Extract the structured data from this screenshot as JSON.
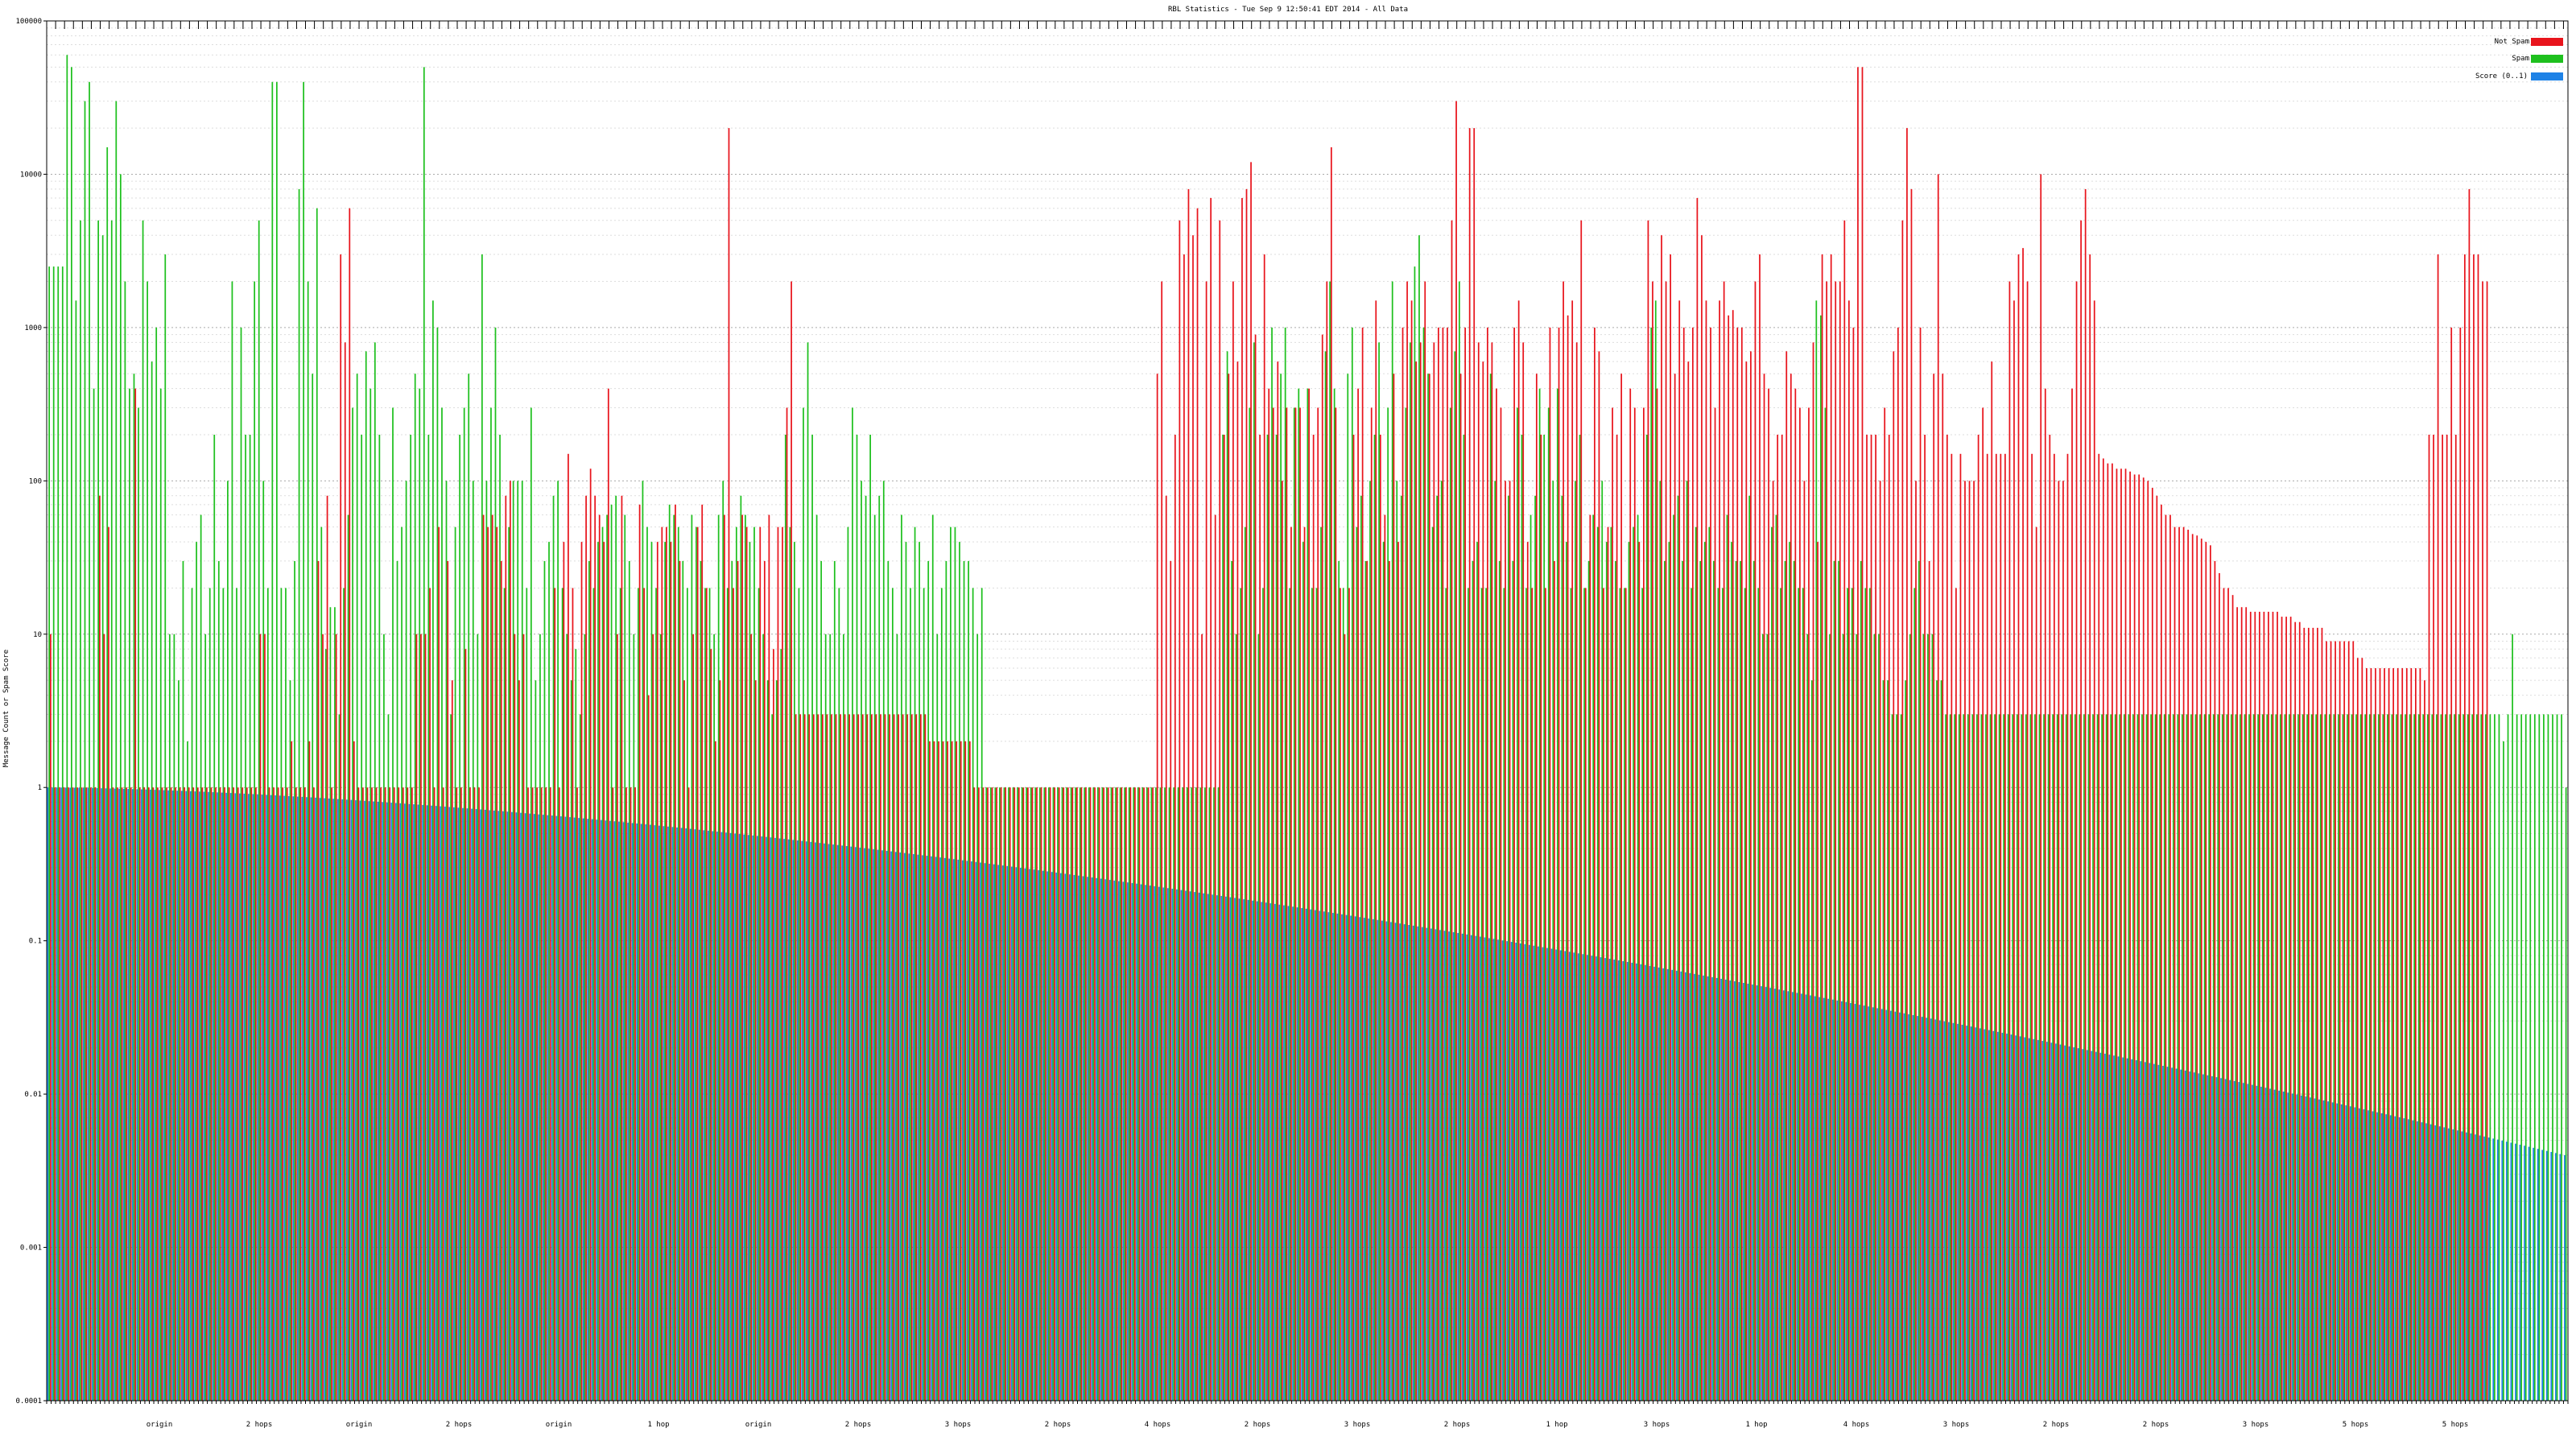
{
  "chart_data": {
    "type": "bar",
    "title": "RBL Statistics - Tue Sep  9 12:50:41 EDT 2014 - All Data",
    "ylabel": "Message Count or Spam Score",
    "xlabel": "",
    "yscale": "log",
    "ylim": [
      0.0001,
      100000
    ],
    "yticks": [
      "0.0001",
      "0.001",
      "0.01",
      "0.1",
      "1",
      "10",
      "100",
      "1000",
      "10000",
      "100000"
    ],
    "legend_position": "top-right",
    "grid": true,
    "colors": {
      "not_spam": "#e8141c",
      "spam": "#1ec01e",
      "score": "#1e82e6"
    },
    "series": [
      {
        "name": "Not Spam",
        "key": "not_spam"
      },
      {
        "name": "Spam",
        "key": "spam"
      },
      {
        "name": "Score (0..1)",
        "key": "score"
      }
    ],
    "bars": {
      "not_spam": [
        10,
        1,
        1,
        1,
        1,
        1,
        1,
        1,
        1,
        1,
        1,
        80,
        10,
        50,
        1,
        1,
        1,
        1,
        1,
        400,
        1,
        1,
        1,
        1,
        1,
        1,
        1,
        1,
        1,
        1,
        1,
        1,
        1,
        1,
        1,
        1,
        1,
        1,
        1,
        1,
        1,
        1,
        1,
        1,
        1,
        1,
        1,
        10,
        10,
        1,
        1,
        1,
        1,
        1,
        2,
        1,
        1,
        1,
        2,
        1,
        30,
        10,
        80,
        1,
        10,
        3000,
        800,
        6000,
        2,
        1,
        1,
        1,
        1,
        1,
        1,
        1,
        1,
        1,
        1,
        1,
        1,
        1,
        10,
        10,
        10,
        20,
        1,
        50,
        1,
        30,
        5,
        1,
        1,
        8,
        1,
        1,
        1,
        60,
        50,
        60,
        50,
        30,
        80,
        100,
        10,
        5,
        10,
        1,
        1,
        1,
        1,
        1,
        1,
        20,
        1,
        40,
        150,
        20,
        1,
        40,
        80,
        120,
        80,
        60,
        40,
        400,
        1,
        10,
        80,
        1,
        1,
        1,
        70,
        20,
        4,
        10,
        40,
        50,
        50,
        40,
        70,
        30,
        5,
        1,
        10,
        50,
        70,
        20,
        8,
        2,
        5,
        60,
        20000,
        20,
        30,
        60,
        50,
        10,
        5,
        50,
        30,
        60,
        8,
        50,
        50,
        300,
        2000,
        3,
        3,
        3,
        3,
        3,
        3,
        3,
        3,
        3,
        3,
        3,
        3,
        3,
        3,
        3,
        3,
        3,
        3,
        3,
        3,
        3,
        3,
        3,
        3,
        3,
        3,
        3,
        3,
        3,
        3,
        2,
        2,
        2,
        2,
        2,
        2,
        2,
        2,
        2,
        2,
        1,
        1,
        1,
        1,
        1,
        1,
        1,
        1,
        1,
        1,
        1,
        1,
        1,
        1,
        1,
        1,
        1,
        1,
        1,
        1,
        1,
        1,
        1,
        1,
        1,
        1,
        1,
        1,
        1,
        1,
        1,
        1,
        1,
        1,
        1,
        1,
        1,
        1,
        1,
        1,
        1,
        500,
        2000,
        80,
        30,
        200,
        5000,
        3000,
        8000,
        4000,
        6000,
        10,
        2000,
        7000,
        60,
        5000,
        200,
        500,
        2000,
        600,
        7000,
        8000,
        12000,
        900,
        200,
        3000,
        400,
        300,
        600,
        100,
        300,
        50,
        300,
        300,
        50,
        400,
        200,
        300,
        900,
        2000,
        15000,
        300,
        20,
        10,
        20,
        200,
        400,
        1000,
        30,
        300,
        1500,
        200,
        60,
        30,
        500,
        40,
        1000,
        2000,
        1500,
        600,
        800,
        2000,
        500,
        800,
        1000,
        1000,
        1000,
        5000,
        30000,
        500,
        1000,
        20000,
        20000,
        800,
        600,
        1000,
        800,
        400,
        300,
        100,
        100,
        1000,
        1500,
        800,
        40,
        20,
        500,
        200,
        20,
        1000,
        30,
        1000,
        2000,
        1200,
        1500,
        800,
        5000,
        20,
        60,
        1000,
        700,
        20,
        50,
        300,
        200,
        500,
        20,
        400,
        300,
        40,
        300,
        5000,
        2000,
        400,
        4000,
        2000,
        3000,
        500,
        1500,
        1000,
        600,
        1000,
        7000,
        4000,
        1500,
        1000,
        300,
        1500,
        2000,
        1200,
        1300,
        1000,
        1000,
        600,
        700,
        2000,
        3000,
        500,
        400,
        100,
        200,
        200,
        700,
        500,
        400,
        300,
        100,
        300,
        800,
        40,
        3000,
        2000,
        3000,
        2000,
        2000,
        5000,
        1500,
        1000,
        50000,
        50000,
        200,
        200,
        200,
        100,
        300,
        200,
        700,
        1000,
        5000,
        20000,
        8000,
        100,
        1000,
        200,
        30,
        500,
        10000,
        500,
        200,
        150,
        20,
        150,
        100,
        100,
        100,
        200,
        300,
        150,
        600,
        150,
        150,
        150,
        2000,
        1500,
        3000,
        3300,
        2000,
        150,
        50,
        10000,
        400,
        200,
        150,
        100,
        100,
        150,
        400,
        2000,
        5000,
        8000,
        3000,
        1500,
        150,
        140,
        130,
        130,
        120,
        120,
        120,
        115,
        110,
        110,
        105,
        100,
        90,
        80,
        70,
        60,
        60,
        50,
        50,
        50,
        48,
        45,
        44,
        42,
        40,
        38,
        30,
        25,
        20,
        20,
        18,
        15,
        15,
        15,
        14,
        14,
        14,
        14,
        14,
        14,
        14,
        13,
        13,
        13,
        12,
        12,
        11,
        11,
        11,
        11,
        11,
        9,
        9,
        9,
        9,
        9,
        9,
        9,
        7,
        7,
        6,
        6,
        6,
        6,
        6,
        6,
        6,
        6,
        6,
        6,
        6,
        6,
        6,
        5,
        200,
        200,
        3000,
        200,
        200,
        1000,
        200,
        1000,
        3000,
        8000,
        3000,
        3000,
        2000,
        2000
      ],
      "spam": [
        2500,
        2500,
        2500,
        2500,
        60000,
        50000,
        1500,
        5000,
        30000,
        40000,
        400,
        5000,
        4000,
        15000,
        5000,
        30000,
        10000,
        2000,
        400,
        500,
        300,
        5000,
        2000,
        600,
        1000,
        400,
        3000,
        10,
        10,
        5,
        30,
        2,
        20,
        40,
        60,
        10,
        20,
        200,
        30,
        20,
        100,
        2000,
        20,
        1000,
        200,
        200,
        2000,
        5000,
        100,
        20,
        40000,
        40000,
        20,
        20,
        5,
        30,
        8000,
        40000,
        2000,
        500,
        6000,
        50,
        8,
        15,
        15,
        3,
        20,
        60,
        300,
        500,
        200,
        700,
        400,
        800,
        200,
        10,
        3,
        300,
        30,
        50,
        100,
        200,
        500,
        400,
        50000,
        200,
        1500,
        1000,
        300,
        100,
        3,
        50,
        200,
        300,
        500,
        100,
        10,
        3000,
        100,
        300,
        1000,
        200,
        20,
        50,
        100,
        100,
        100,
        20,
        300,
        5,
        10,
        30,
        40,
        80,
        100,
        20,
        10,
        5,
        8,
        3,
        10,
        30,
        20,
        40,
        50,
        60,
        70,
        80,
        20,
        60,
        30,
        10,
        20,
        100,
        50,
        40,
        20,
        10,
        40,
        70,
        60,
        50,
        30,
        20,
        60,
        50,
        30,
        20,
        20,
        10,
        60,
        100,
        20,
        30,
        50,
        80,
        60,
        40,
        50,
        20,
        10,
        5,
        3,
        5,
        8,
        200,
        50,
        40,
        20,
        300,
        800,
        200,
        60,
        30,
        10,
        10,
        30,
        20,
        10,
        50,
        300,
        200,
        100,
        80,
        200,
        60,
        80,
        100,
        30,
        20,
        10,
        60,
        40,
        20,
        50,
        40,
        20,
        30,
        60,
        10,
        20,
        30,
        50,
        50,
        40,
        30,
        30,
        20,
        10,
        20,
        1,
        1,
        1,
        1,
        1,
        1,
        1,
        1,
        1,
        1,
        1,
        1,
        1,
        1,
        1,
        1,
        1,
        1,
        1,
        1,
        1,
        1,
        1,
        1,
        1,
        1,
        1,
        1,
        1,
        1,
        1,
        1,
        1,
        1,
        1,
        1,
        1,
        1,
        1,
        1,
        1,
        1,
        1,
        1,
        1,
        1,
        1,
        1,
        1,
        1,
        1,
        1,
        1,
        200,
        700,
        30,
        10,
        20,
        50,
        300,
        800,
        10,
        20,
        200,
        1000,
        200,
        500,
        1000,
        20,
        300,
        400,
        40,
        400,
        20,
        20,
        50,
        700,
        2000,
        400,
        30,
        20,
        500,
        1000,
        50,
        80,
        30,
        100,
        200,
        800,
        40,
        300,
        2000,
        100,
        80,
        300,
        800,
        2500,
        4000,
        1000,
        500,
        50,
        80,
        100,
        20,
        300,
        700,
        2000,
        200,
        20,
        30,
        40,
        20,
        20,
        500,
        100,
        30,
        20,
        80,
        30,
        300,
        200,
        20,
        60,
        80,
        400,
        200,
        300,
        100,
        400,
        80,
        40,
        20,
        100,
        200,
        20,
        30,
        60,
        50,
        100,
        40,
        50,
        30,
        20,
        20,
        40,
        50,
        60,
        20,
        200,
        1000,
        1500,
        100,
        30,
        40,
        60,
        80,
        30,
        100,
        20,
        50,
        30,
        40,
        50,
        30,
        20,
        20,
        60,
        40,
        30,
        30,
        20,
        80,
        30,
        20,
        10,
        10,
        50,
        60,
        20,
        30,
        40,
        30,
        20,
        20,
        10,
        5,
        1500,
        1200,
        300,
        10,
        30,
        30,
        10,
        20,
        20,
        10,
        30,
        20,
        20,
        10,
        10,
        5,
        5,
        3,
        3,
        3,
        5,
        10,
        20,
        30,
        10,
        10,
        10,
        5,
        5,
        3,
        3,
        3,
        3,
        3,
        3,
        3,
        3,
        3,
        3,
        3,
        3,
        3,
        3,
        3,
        3,
        3,
        3,
        3,
        3,
        3,
        3,
        3,
        3,
        3,
        3,
        3,
        3,
        3,
        3,
        3,
        3,
        3,
        3,
        3,
        3,
        3,
        3,
        3,
        3,
        3,
        3,
        3,
        3,
        3,
        3,
        3,
        3,
        3,
        3,
        3,
        3,
        3,
        3,
        3,
        3,
        3,
        3,
        3,
        3,
        3,
        3,
        3,
        3,
        3,
        3,
        3,
        3,
        3,
        3,
        3,
        3,
        3,
        3,
        3,
        3,
        3,
        3,
        3,
        3,
        3,
        3,
        3,
        3,
        3,
        3,
        3,
        3,
        3,
        3,
        3,
        3,
        3,
        3,
        3,
        3,
        3,
        3,
        3,
        3,
        3,
        3,
        3,
        3,
        3,
        3,
        3,
        3,
        3,
        3,
        3,
        3,
        3,
        3,
        3,
        3,
        3,
        3,
        3,
        3,
        3,
        3,
        3,
        3,
        3,
        2,
        3,
        10,
        3,
        3,
        3,
        3,
        3,
        3,
        3,
        3,
        3,
        3,
        3,
        1
      ],
      "score_range": [
        1.0,
        0.004
      ]
    },
    "x_labels_note": "",
    "x_labels": [
      "origin",
      "2 hops",
      "origin",
      "2 hops",
      "origin",
      "1 hop",
      "origin",
      "2 hops",
      "3 hops",
      "2 hops",
      "4 hops",
      "2 hops",
      "3 hops",
      "2 hops",
      "1 hop",
      "3 hops",
      "1 hop",
      "4 hops",
      "3 hops",
      "2 hops",
      "2 hops",
      "3 hops",
      "5 hops",
      "5 hops"
    ]
  },
  "legend": {
    "not_spam_label": "Not Spam",
    "spam_label": "Spam",
    "score_label": "Score (0..1)"
  }
}
